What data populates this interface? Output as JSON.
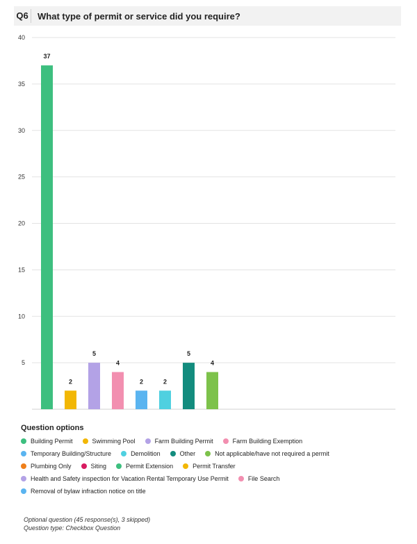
{
  "question": {
    "number": "Q6",
    "title": "What type of permit or service did you require?"
  },
  "chart_data": {
    "type": "bar",
    "categories": [
      "Building Permit",
      "Swimming Pool",
      "Farm Building Permit",
      "Farm Building Exemption",
      "Temporary Building/Structure",
      "Demolition",
      "Other",
      "Not applicable/have not required a permit"
    ],
    "values": [
      37,
      2,
      5,
      4,
      2,
      2,
      5,
      4
    ],
    "colors": [
      "#3dbf7f",
      "#f2b705",
      "#b3a2e6",
      "#f28fb0",
      "#5ab4f0",
      "#4fd0e0",
      "#138c7e",
      "#7dc24b"
    ],
    "ylim": [
      0,
      40
    ],
    "yticks": [
      5,
      10,
      15,
      20,
      25,
      30,
      35,
      40
    ],
    "grid": true
  },
  "legend": {
    "title": "Question options",
    "rows": [
      [
        {
          "label": "Building Permit",
          "color": "#3dbf7f"
        },
        {
          "label": "Swimming Pool",
          "color": "#f2b705"
        },
        {
          "label": "Farm Building Permit",
          "color": "#b3a2e6"
        },
        {
          "label": "Farm Building Exemption",
          "color": "#f28fb0"
        }
      ],
      [
        {
          "label": "Temporary Building/Structure",
          "color": "#5ab4f0"
        },
        {
          "label": "Demolition",
          "color": "#4fd0e0"
        },
        {
          "label": "Other",
          "color": "#138c7e"
        },
        {
          "label": "Not applicable/have not required a permit",
          "color": "#7dc24b"
        }
      ],
      [
        {
          "label": "Plumbing Only",
          "color": "#ef7f1a"
        },
        {
          "label": "Siting",
          "color": "#d81b60"
        },
        {
          "label": "Permit Extension",
          "color": "#3dbf7f"
        },
        {
          "label": "Permit Transfer",
          "color": "#f2b705"
        }
      ],
      [
        {
          "label": "Health and Safety inspection for Vacation Rental Temporary Use Permit",
          "color": "#b3a2e6"
        },
        {
          "label": "File Search",
          "color": "#f28fb0"
        }
      ],
      [
        {
          "label": "Removal of bylaw infraction notice on title",
          "color": "#5ab4f0"
        }
      ]
    ]
  },
  "footer": {
    "line1": "Optional question (45 response(s), 3 skipped)",
    "line2": "Question type: Checkbox Question"
  }
}
